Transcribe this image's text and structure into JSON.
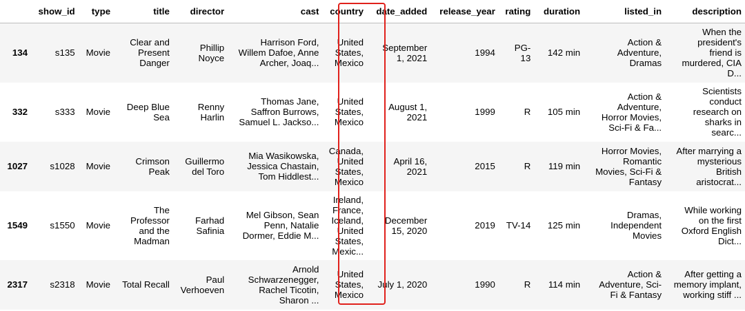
{
  "columns": [
    "",
    "show_id",
    "type",
    "title",
    "director",
    "cast",
    "country",
    "date_added",
    "release_year",
    "rating",
    "duration",
    "listed_in",
    "description"
  ],
  "rows": [
    {
      "index": "134",
      "show_id": "s135",
      "type": "Movie",
      "title": [
        "Clear and",
        "Present",
        "Danger"
      ],
      "director": [
        "Phillip",
        "Noyce"
      ],
      "cast": [
        "Harrison Ford,",
        "Willem Dafoe, Anne",
        "Archer, Joaq..."
      ],
      "country": [
        "United",
        "States,",
        "Mexico"
      ],
      "date_added": [
        "September",
        "1, 2021"
      ],
      "release_year": "1994",
      "rating": [
        "PG-",
        "13"
      ],
      "duration": "142 min",
      "listed_in": [
        "Action &",
        "Adventure,",
        "Dramas"
      ],
      "description": [
        "When the",
        "president's",
        "friend is",
        "murdered, CIA",
        "D..."
      ]
    },
    {
      "index": "332",
      "show_id": "s333",
      "type": "Movie",
      "title": [
        "Deep Blue",
        "Sea"
      ],
      "director": [
        "Renny",
        "Harlin"
      ],
      "cast": [
        "Thomas Jane,",
        "Saffron Burrows,",
        "Samuel L. Jackso..."
      ],
      "country": [
        "United",
        "States,",
        "Mexico"
      ],
      "date_added": [
        "August 1,",
        "2021"
      ],
      "release_year": "1999",
      "rating": [
        "R"
      ],
      "duration": "105 min",
      "listed_in": [
        "Action &",
        "Adventure,",
        "Horror Movies,",
        "Sci-Fi & Fa..."
      ],
      "description": [
        "Scientists",
        "conduct",
        "research on",
        "sharks in",
        "searc..."
      ]
    },
    {
      "index": "1027",
      "show_id": "s1028",
      "type": "Movie",
      "title": [
        "Crimson",
        "Peak"
      ],
      "director": [
        "Guillermo",
        "del Toro"
      ],
      "cast": [
        "Mia Wasikowska,",
        "Jessica Chastain,",
        "Tom Hiddlest..."
      ],
      "country": [
        "Canada,",
        "United",
        "States,",
        "Mexico"
      ],
      "date_added": [
        "April 16,",
        "2021"
      ],
      "release_year": "2015",
      "rating": [
        "R"
      ],
      "duration": "119 min",
      "listed_in": [
        "Horror Movies,",
        "Romantic",
        "Movies, Sci-Fi &",
        "Fantasy"
      ],
      "description": [
        "After marrying a",
        "mysterious",
        "British",
        "aristocrat..."
      ]
    },
    {
      "index": "1549",
      "show_id": "s1550",
      "type": "Movie",
      "title": [
        "The",
        "Professor",
        "and the",
        "Madman"
      ],
      "director": [
        "Farhad",
        "Safinia"
      ],
      "cast": [
        "Mel Gibson, Sean",
        "Penn, Natalie",
        "Dormer, Eddie M..."
      ],
      "country": [
        "Ireland,",
        "France,",
        "Iceland,",
        "United",
        "States,",
        "Mexic..."
      ],
      "date_added": [
        "December",
        "15, 2020"
      ],
      "release_year": "2019",
      "rating": [
        "TV-14"
      ],
      "duration": "125 min",
      "listed_in": [
        "Dramas,",
        "Independent",
        "Movies"
      ],
      "description": [
        "While working",
        "on the first",
        "Oxford English",
        "Dict..."
      ]
    },
    {
      "index": "2317",
      "show_id": "s2318",
      "type": "Movie",
      "title": [
        "Total Recall"
      ],
      "director": [
        "Paul",
        "Verhoeven"
      ],
      "cast": [
        "Arnold",
        "Schwarzenegger,",
        "Rachel Ticotin,",
        "Sharon ..."
      ],
      "country": [
        "United",
        "States,",
        "Mexico"
      ],
      "date_added": [
        "July 1, 2020"
      ],
      "release_year": "1990",
      "rating": [
        "R"
      ],
      "duration": "114 min",
      "listed_in": [
        "Action &",
        "Adventure, Sci-",
        "Fi & Fantasy"
      ],
      "description": [
        "After getting a",
        "memory implant,",
        "working stiff ..."
      ]
    }
  ],
  "highlight": {
    "column": "country",
    "color": "#e0201b"
  }
}
